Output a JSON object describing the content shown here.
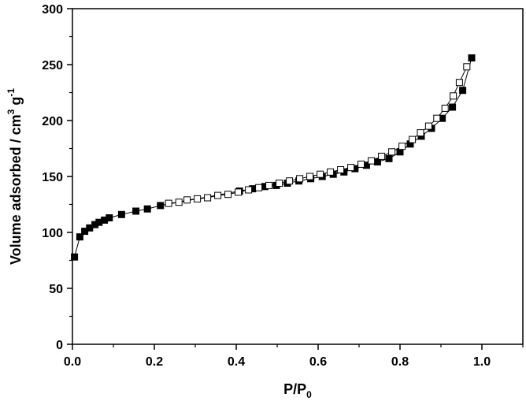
{
  "chart_data": {
    "type": "scatter",
    "title": "",
    "xlabel": {
      "base": "P/P",
      "sub": "0"
    },
    "ylabel": {
      "main": "Volume adsorbed / cm",
      "sup1": "3",
      "mid": " g",
      "sup2": "-1"
    },
    "xlim": [
      0,
      1.1
    ],
    "ylim": [
      0,
      300
    ],
    "x_ticks": [
      0.0,
      0.2,
      0.4,
      0.6,
      0.8,
      1.0
    ],
    "x_tick_labels": [
      "0.0",
      "0.2",
      "0.4",
      "0.6",
      "0.8",
      "1.0"
    ],
    "y_ticks": [
      0,
      50,
      100,
      150,
      200,
      250,
      300
    ],
    "y_tick_labels": [
      "0",
      "50",
      "100",
      "150",
      "200",
      "250",
      "300"
    ],
    "grid": false,
    "legend": "none",
    "series": [
      {
        "marker": "filled-square",
        "color": "#000000",
        "x": [
          0.005,
          0.018,
          0.03,
          0.042,
          0.055,
          0.065,
          0.078,
          0.09,
          0.12,
          0.155,
          0.183,
          0.215,
          0.408,
          0.44,
          0.47,
          0.498,
          0.525,
          0.553,
          0.582,
          0.61,
          0.637,
          0.663,
          0.69,
          0.718,
          0.745,
          0.773,
          0.8,
          0.825,
          0.852,
          0.877,
          0.903,
          0.928,
          0.953,
          0.975
        ],
        "y": [
          78,
          96,
          101,
          104,
          107,
          109,
          111,
          113,
          116,
          119,
          121,
          124,
          137,
          139,
          141,
          142,
          144,
          146,
          148,
          150,
          152,
          154,
          157,
          160,
          163,
          166,
          172,
          179,
          186,
          193,
          202,
          212,
          227,
          256
        ]
      },
      {
        "marker": "open-square",
        "color": "#000000",
        "x": [
          0.235,
          0.26,
          0.28,
          0.305,
          0.33,
          0.355,
          0.38,
          0.405,
          0.43,
          0.455,
          0.48,
          0.505,
          0.53,
          0.555,
          0.58,
          0.605,
          0.63,
          0.655,
          0.68,
          0.705,
          0.73,
          0.755,
          0.78,
          0.805,
          0.83,
          0.85,
          0.87,
          0.89,
          0.91,
          0.93,
          0.945,
          0.963
        ],
        "y": [
          126,
          127,
          129,
          130,
          131,
          133,
          134,
          136,
          138,
          140,
          142,
          144,
          146,
          148,
          150,
          152,
          154,
          156,
          158,
          161,
          164,
          168,
          172,
          177,
          183,
          189,
          195,
          202,
          211,
          222,
          234,
          248
        ]
      }
    ]
  }
}
